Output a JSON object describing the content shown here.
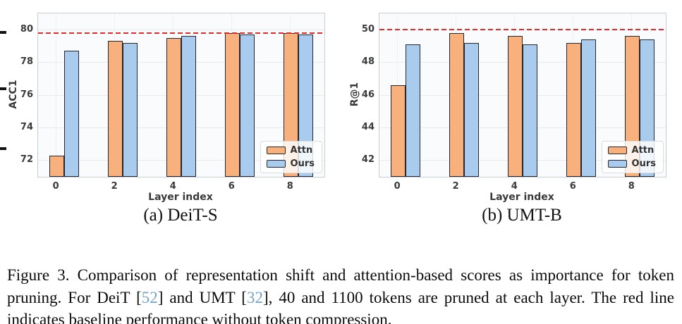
{
  "chart_data": [
    {
      "type": "bar",
      "panel": "a",
      "subcaption": "(a) DeiT-S",
      "xlabel": "Layer index",
      "ylabel": "ACC1",
      "categories": [
        "0",
        "2",
        "4",
        "6",
        "8"
      ],
      "series": [
        {
          "name": "Attn",
          "color": "#f8b07d",
          "values": [
            72.3,
            79.3,
            79.5,
            79.8,
            79.8
          ]
        },
        {
          "name": "Ours",
          "color": "#a8cbee",
          "values": [
            78.7,
            79.2,
            79.6,
            79.7,
            79.7
          ]
        }
      ],
      "baseline": 79.8,
      "yticks": [
        72,
        74,
        76,
        78,
        80
      ],
      "ylim": [
        71,
        81
      ],
      "grid": true,
      "legend_position": "lower right"
    },
    {
      "type": "bar",
      "panel": "b",
      "subcaption": "(b) UMT-B",
      "xlabel": "Layer index",
      "ylabel": "R@1",
      "categories": [
        "0",
        "2",
        "4",
        "6",
        "8"
      ],
      "series": [
        {
          "name": "Attn",
          "color": "#f8b07d",
          "values": [
            46.6,
            49.8,
            49.6,
            49.2,
            49.6
          ]
        },
        {
          "name": "Ours",
          "color": "#a8cbee",
          "values": [
            49.1,
            49.2,
            49.1,
            49.4,
            49.4
          ]
        }
      ],
      "baseline": 50.0,
      "yticks": [
        42,
        44,
        46,
        48,
        50
      ],
      "ylim": [
        41,
        51
      ],
      "grid": true,
      "legend_position": "lower right"
    }
  ],
  "caption": {
    "segments": [
      {
        "text": "Figure 3. Comparison of representation shift and attention-based scores as importance for token pruning. For DeiT ["
      },
      {
        "text": "52",
        "cite": true
      },
      {
        "text": "] and UMT ["
      },
      {
        "text": "32",
        "cite": true
      },
      {
        "text": "], 40 and 1100 tokens are pruned at each layer. The red line indicates baseline performance without token compression."
      }
    ]
  },
  "style": {
    "attn_color": "#f8b07d",
    "ours_color": "#a8cbee",
    "bar_edge_color": "#26272e",
    "baseline_color": "#e12b28",
    "cite_color": "#74a3c7"
  }
}
